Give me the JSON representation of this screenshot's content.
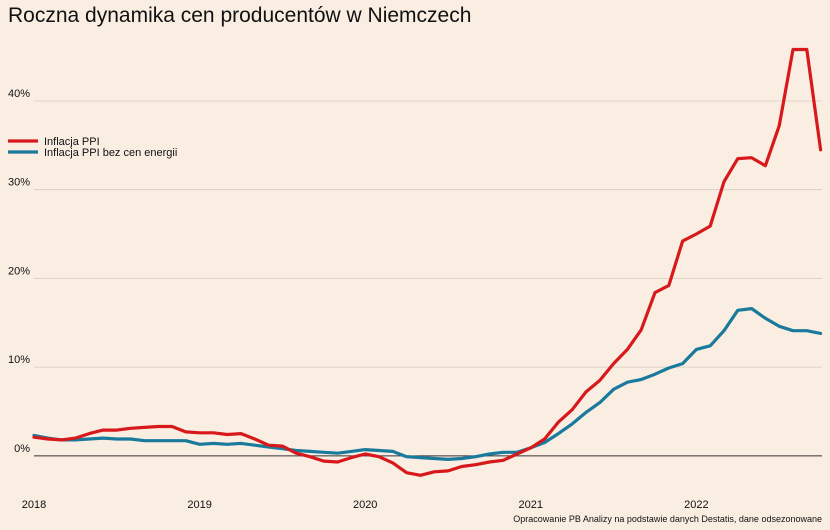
{
  "chart_data": {
    "type": "line",
    "title": "Roczna dynamika cen producentów w Niemczech",
    "source": "Opracowanie PB Analizy na podstawie danych Destatis, dane odsezonowane",
    "x_ticks": [
      "2018",
      "2019",
      "2020",
      "2021",
      "2022"
    ],
    "y_ticks": [
      0,
      10,
      20,
      30,
      40
    ],
    "y_tick_labels": [
      "0%",
      "10%",
      "20%",
      "30%",
      "40%"
    ],
    "ylim": [
      -2.5,
      48
    ],
    "x_start": "2018-01",
    "legend_position": "left",
    "grid": true,
    "series": [
      {
        "name": "Inflacja PPI",
        "color": "#d7191c",
        "values": [
          2.1,
          1.9,
          1.8,
          2.0,
          2.5,
          2.9,
          2.9,
          3.1,
          3.2,
          3.3,
          3.3,
          2.7,
          2.6,
          2.6,
          2.4,
          2.5,
          1.9,
          1.2,
          1.1,
          0.3,
          -0.1,
          -0.6,
          -0.7,
          -0.2,
          0.2,
          -0.1,
          -0.8,
          -1.9,
          -2.2,
          -1.8,
          -1.7,
          -1.2,
          -1.0,
          -0.7,
          -0.5,
          0.2,
          0.9,
          1.9,
          3.8,
          5.2,
          7.2,
          8.5,
          10.4,
          12.0,
          14.2,
          18.4,
          19.2,
          24.2,
          25.0,
          25.9,
          30.9,
          33.5,
          33.6,
          32.7,
          37.2,
          45.8,
          45.8,
          34.5
        ]
      },
      {
        "name": "Inflacja PPI bez cen energii",
        "color": "#1a7a9c",
        "values": [
          2.3,
          2.0,
          1.8,
          1.8,
          1.9,
          2.0,
          1.9,
          1.9,
          1.7,
          1.7,
          1.7,
          1.7,
          1.3,
          1.4,
          1.3,
          1.4,
          1.2,
          1.0,
          0.8,
          0.6,
          0.5,
          0.4,
          0.3,
          0.5,
          0.7,
          0.6,
          0.5,
          -0.1,
          -0.2,
          -0.3,
          -0.4,
          -0.3,
          -0.1,
          0.2,
          0.4,
          0.4,
          0.9,
          1.5,
          2.5,
          3.6,
          4.9,
          6.0,
          7.5,
          8.3,
          8.6,
          9.2,
          9.9,
          10.4,
          12.0,
          12.4,
          14.1,
          16.4,
          16.6,
          15.5,
          14.6,
          14.1,
          14.1,
          13.8
        ]
      }
    ]
  }
}
